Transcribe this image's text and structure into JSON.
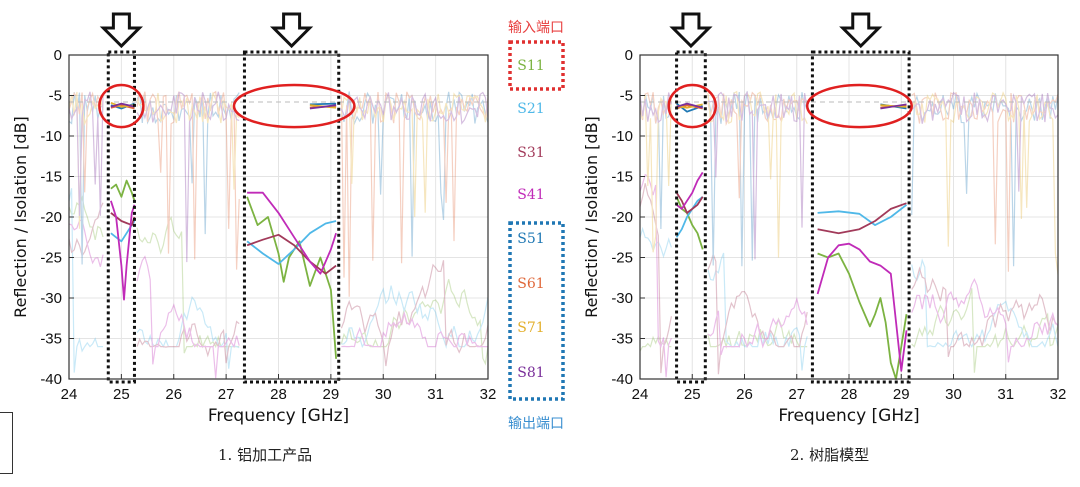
{
  "legend": {
    "input_title": "输入端口",
    "output_title": "输出端口",
    "items": [
      {
        "name": "S11",
        "color": "#7cb342"
      },
      {
        "name": "S21",
        "color": "#4fb8e8"
      },
      {
        "name": "S31",
        "color": "#a23a5a"
      },
      {
        "name": "S41",
        "color": "#c02bb8"
      },
      {
        "name": "S51",
        "color": "#1f78b4"
      },
      {
        "name": "S61",
        "color": "#e0683a"
      },
      {
        "name": "S71",
        "color": "#e3b02d"
      },
      {
        "name": "S81",
        "color": "#7a2f9a"
      }
    ],
    "input_box_color": "#e03030",
    "output_box_color": "#1f77b4",
    "input_title_color": "#e84040",
    "output_title_color": "#3a8fd0"
  },
  "chart_data": [
    {
      "type": "line",
      "caption": "1. 铝加工产品",
      "xlabel": "Frequency [GHz]",
      "ylabel": "Reflection / Isolation [dB]",
      "xlim": [
        24,
        32
      ],
      "ylim": [
        -40,
        0
      ],
      "xticks": [
        24,
        25,
        26,
        27,
        28,
        29,
        30,
        31,
        32
      ],
      "yticks": [
        0,
        -5,
        -10,
        -15,
        -20,
        -25,
        -30,
        -35,
        -40
      ],
      "bands": [
        [
          24.75,
          25.25
        ],
        [
          27.35,
          29.15
        ]
      ],
      "ovals": [
        {
          "cx": 25.0,
          "cy": -6.3,
          "rx": 0.42,
          "ry": 2.6
        },
        {
          "cx": 28.3,
          "cy": -6.3,
          "rx": 1.15,
          "ry": 2.6
        }
      ],
      "series": [
        {
          "name": "S11",
          "x": [
            24.8,
            24.9,
            25.0,
            25.1,
            25.2,
            25.25,
            27.4,
            27.6,
            27.8,
            28.0,
            28.1,
            28.2,
            28.4,
            28.6,
            28.8,
            29.0,
            29.1
          ],
          "y": [
            -16.5,
            -16.0,
            -17.5,
            -15.5,
            -17.0,
            -18.0,
            -17.5,
            -21.0,
            -20.0,
            -24.5,
            -28.0,
            -25.0,
            -23.0,
            -28.5,
            -25.0,
            -29.0,
            -37.5
          ]
        },
        {
          "name": "S21",
          "x": [
            24.8,
            24.9,
            25.0,
            25.1,
            25.2,
            25.25,
            27.4,
            27.7,
            28.0,
            28.3,
            28.6,
            28.9,
            29.1
          ],
          "y": [
            -22.0,
            -22.5,
            -23.0,
            -22.0,
            -21.0,
            -20.5,
            -23.0,
            -24.5,
            -25.8,
            -24.0,
            -22.0,
            -20.8,
            -20.5
          ]
        },
        {
          "name": "S31",
          "x": [
            24.8,
            25.0,
            25.2,
            25.25,
            27.4,
            27.7,
            28.0,
            28.3,
            28.6,
            28.9,
            29.1
          ],
          "y": [
            -19.5,
            -20.5,
            -21.0,
            -20.0,
            -23.5,
            -22.8,
            -22.2,
            -23.5,
            -25.5,
            -27.0,
            -26.0
          ]
        },
        {
          "name": "S41",
          "x": [
            24.8,
            24.9,
            25.0,
            25.05,
            25.1,
            25.2,
            25.25,
            27.4,
            27.7,
            28.0,
            28.3,
            28.6,
            28.8,
            29.0,
            29.1
          ],
          "y": [
            -18.0,
            -20.0,
            -26.0,
            -30.2,
            -26.0,
            -19.5,
            -18.5,
            -17.0,
            -17.0,
            -19.5,
            -22.5,
            -25.5,
            -27.0,
            -24.0,
            -22.0
          ]
        },
        {
          "name": "S51",
          "x": [
            24.8,
            25.0,
            25.25,
            27.4,
            28.0,
            28.6,
            29.1
          ],
          "y": [
            -6.2,
            -6.6,
            -6.0,
            -6.0,
            -6.3,
            -6.1,
            -6.0
          ]
        },
        {
          "name": "S61",
          "x": [
            24.8,
            25.0,
            25.25,
            27.4,
            28.0,
            28.6,
            29.1
          ],
          "y": [
            -6.5,
            -6.2,
            -6.6,
            -6.4,
            -6.1,
            -6.5,
            -6.3
          ]
        },
        {
          "name": "S71",
          "x": [
            24.8,
            25.0,
            25.25,
            27.4,
            28.0,
            28.6,
            29.1
          ],
          "y": [
            -5.9,
            -6.4,
            -6.2,
            -6.2,
            -6.6,
            -6.2,
            -6.5
          ]
        },
        {
          "name": "S81",
          "x": [
            24.8,
            25.0,
            25.25,
            27.4,
            28.0,
            28.6,
            29.1
          ],
          "y": [
            -6.4,
            -6.0,
            -6.4,
            -6.7,
            -6.4,
            -6.6,
            -6.2
          ]
        }
      ]
    },
    {
      "type": "line",
      "caption": "2. 树脂模型",
      "xlabel": "Frequency [GHz]",
      "ylabel": "Reflection / Isolation [dB]",
      "xlim": [
        24,
        32
      ],
      "ylim": [
        -40,
        0
      ],
      "xticks": [
        24,
        25,
        26,
        27,
        28,
        29,
        30,
        31,
        32
      ],
      "yticks": [
        0,
        -5,
        -10,
        -15,
        -20,
        -25,
        -30,
        -35,
        -40
      ],
      "bands": [
        [
          24.7,
          25.25
        ],
        [
          27.3,
          29.15
        ]
      ],
      "ovals": [
        {
          "cx": 25.0,
          "cy": -6.3,
          "rx": 0.45,
          "ry": 2.6
        },
        {
          "cx": 28.2,
          "cy": -6.3,
          "rx": 1.0,
          "ry": 2.6
        }
      ],
      "series": [
        {
          "name": "S11",
          "x": [
            24.7,
            24.8,
            24.9,
            25.0,
            25.1,
            25.2,
            27.4,
            27.6,
            27.8,
            28.0,
            28.2,
            28.4,
            28.5,
            28.6,
            28.7,
            28.8,
            28.9,
            29.0,
            29.1
          ],
          "y": [
            -17.5,
            -19.0,
            -19.5,
            -21.0,
            -22.0,
            -24.0,
            -24.5,
            -25.0,
            -24.5,
            -27.0,
            -30.5,
            -33.5,
            -32.0,
            -30.0,
            -33.0,
            -38.0,
            -40.0,
            -36.0,
            -32.0
          ]
        },
        {
          "name": "S21",
          "x": [
            24.7,
            24.8,
            24.9,
            25.0,
            25.1,
            25.2,
            27.4,
            27.8,
            28.2,
            28.5,
            28.8,
            29.1
          ],
          "y": [
            -22.5,
            -21.5,
            -20.0,
            -19.0,
            -18.0,
            -17.5,
            -19.5,
            -19.3,
            -19.6,
            -21.0,
            -20.0,
            -18.5
          ]
        },
        {
          "name": "S31",
          "x": [
            24.7,
            24.8,
            24.9,
            25.0,
            25.1,
            25.2,
            27.4,
            27.8,
            28.2,
            28.5,
            28.8,
            29.1
          ],
          "y": [
            -17.0,
            -18.0,
            -19.5,
            -19.0,
            -18.5,
            -17.5,
            -21.5,
            -22.0,
            -21.5,
            -20.5,
            -19.0,
            -18.3
          ]
        },
        {
          "name": "S41",
          "x": [
            24.7,
            24.8,
            24.9,
            25.0,
            25.1,
            25.2,
            27.4,
            27.6,
            27.8,
            28.0,
            28.2,
            28.4,
            28.6,
            28.8,
            29.0,
            29.1
          ],
          "y": [
            -18.5,
            -19.0,
            -18.0,
            -17.0,
            -15.5,
            -14.5,
            -29.5,
            -25.0,
            -23.5,
            -23.3,
            -24.0,
            -25.5,
            -26.0,
            -27.0,
            -39.0,
            -34.0
          ]
        },
        {
          "name": "S51",
          "x": [
            24.7,
            24.9,
            25.2,
            27.4,
            28.0,
            28.6,
            29.1
          ],
          "y": [
            -6.0,
            -7.0,
            -6.3,
            -6.0,
            -6.4,
            -6.1,
            -6.6
          ]
        },
        {
          "name": "S61",
          "x": [
            24.7,
            24.9,
            25.2,
            27.4,
            28.0,
            28.6,
            29.1
          ],
          "y": [
            -6.6,
            -6.2,
            -6.6,
            -6.5,
            -6.1,
            -6.5,
            -6.2
          ]
        },
        {
          "name": "S71",
          "x": [
            24.7,
            24.9,
            25.2,
            27.4,
            28.0,
            28.6,
            29.1
          ],
          "y": [
            -6.3,
            -6.5,
            -6.1,
            -6.2,
            -6.6,
            -6.2,
            -6.4
          ]
        },
        {
          "name": "S81",
          "x": [
            24.7,
            24.9,
            25.2,
            27.4,
            28.0,
            28.6,
            29.1
          ],
          "y": [
            -6.4,
            -6.0,
            -6.5,
            -6.7,
            -6.3,
            -6.6,
            -6.1
          ]
        }
      ]
    }
  ]
}
